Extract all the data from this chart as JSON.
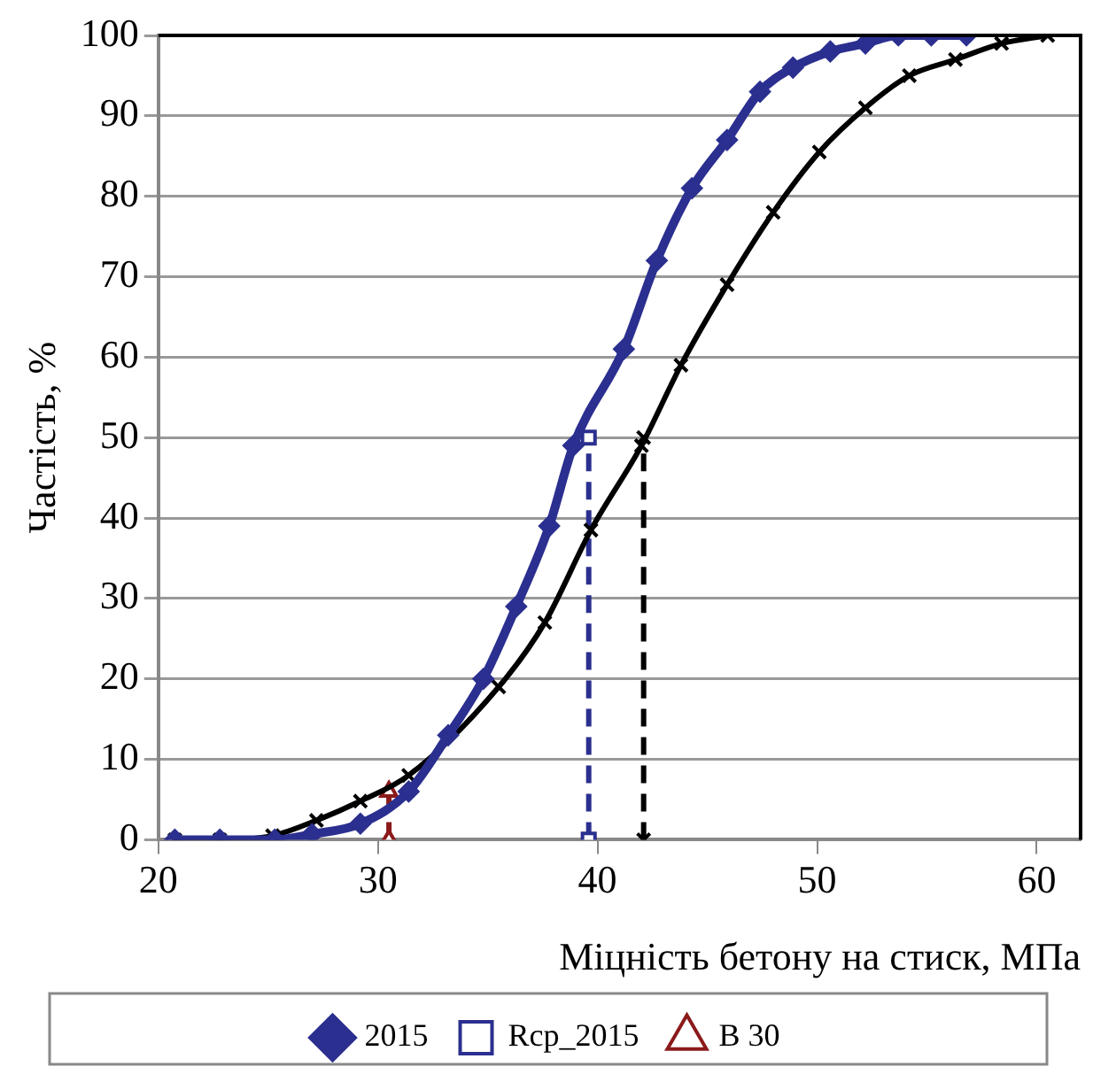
{
  "chart_data": {
    "type": "line",
    "xlabel": "Міцність бетону на стиск, МПа",
    "ylabel": "Частість, %",
    "xlim": [
      20,
      62
    ],
    "xticks": [
      20,
      30,
      40,
      50,
      60
    ],
    "ylim": [
      0,
      100
    ],
    "yticks": [
      0,
      10,
      20,
      30,
      40,
      50,
      60,
      70,
      80,
      90,
      100
    ],
    "grid": "y",
    "legend": "bottom",
    "series": [
      {
        "name": "2015",
        "color": "#2b2f8f",
        "marker": "diamond",
        "line_style": "solid",
        "x": [
          20.75,
          22.8,
          25.3,
          27,
          29.2,
          31.4,
          33.2,
          34.8,
          36.3,
          37.8,
          38.9,
          41.2,
          42.7,
          44.3,
          45.9,
          47.4,
          48.9,
          50.6,
          52.2,
          53.7,
          55.2,
          56.8
        ],
        "values": [
          0,
          0,
          0,
          0.7,
          2,
          6,
          13,
          20,
          29,
          39,
          49,
          61,
          72,
          81,
          87,
          93,
          96,
          98,
          99,
          100,
          100,
          100
        ]
      },
      {
        "color": "#000000",
        "marker": "cross",
        "line_style": "solid",
        "x": [
          20.75,
          22.8,
          25.2,
          27.2,
          29.2,
          31.4,
          33.2,
          35.5,
          37.6,
          39.7,
          42,
          43.8,
          45.9,
          48,
          50.1,
          52.2,
          54.2,
          56.3,
          58.4,
          60.5
        ],
        "values": [
          0,
          0,
          0.5,
          2.4,
          4.8,
          8,
          null,
          19,
          27,
          38.5,
          49,
          59,
          69,
          78,
          85.5,
          91,
          95,
          97,
          99,
          100
        ]
      },
      {
        "name": "Rcp_2015",
        "color": "#2b2f8f",
        "marker": "square",
        "line_style": "dashed",
        "x": [
          39.6,
          39.6
        ],
        "values": [
          0,
          50
        ]
      },
      {
        "color": "#000000",
        "marker": "cross",
        "line_style": "dashed",
        "x": [
          42.1,
          42.1
        ],
        "values": [
          0,
          50
        ]
      },
      {
        "name": "B 30",
        "color": "#8b1a1a",
        "marker": "triangle",
        "line_style": "dashed",
        "x": [
          30.5,
          30.5
        ],
        "values": [
          0,
          6
        ]
      }
    ]
  }
}
